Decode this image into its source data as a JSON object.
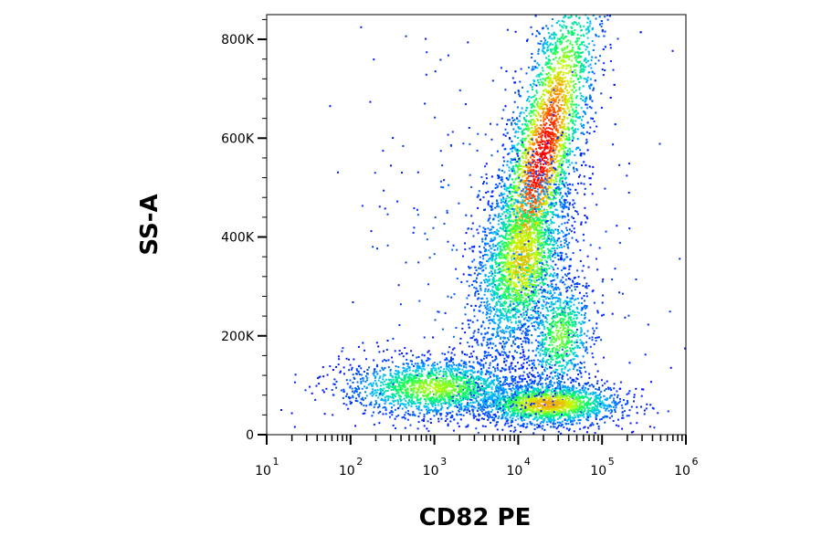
{
  "chart_data": {
    "type": "heatmap",
    "subtype": "flow-cytometry-density-scatter",
    "title": "",
    "xlabel": "CD82 PE",
    "ylabel": "SS-A",
    "x_scale": "log",
    "x_ticks": [
      {
        "base": "10",
        "exp": "1",
        "value": 10
      },
      {
        "base": "10",
        "exp": "2",
        "value": 100
      },
      {
        "base": "10",
        "exp": "3",
        "value": 1000
      },
      {
        "base": "10",
        "exp": "4",
        "value": 10000
      },
      {
        "base": "10",
        "exp": "5",
        "value": 100000
      },
      {
        "base": "10",
        "exp": "6",
        "value": 1000000
      }
    ],
    "y_ticks": [
      {
        "label": "0",
        "value": 0
      },
      {
        "label": "200K",
        "value": 200000
      },
      {
        "label": "400K",
        "value": 400000
      },
      {
        "label": "600K",
        "value": 600000
      },
      {
        "label": "800K",
        "value": 800000
      }
    ],
    "xlim": [
      10,
      1000000
    ],
    "ylim": [
      0,
      850000
    ],
    "grid": false,
    "legend": "none",
    "colormap": [
      "#0000ff",
      "#00c0ff",
      "#00ff60",
      "#c8ff00",
      "#ff9000",
      "#ff0000"
    ],
    "populations": [
      {
        "name_hint": "main",
        "center_log_x": 4.28,
        "center_y": 560000,
        "spread_log_x": 0.22,
        "spread_y": 200000,
        "tilt": 0.55,
        "weight": 0.42,
        "peak_intensity": 1.0
      },
      {
        "name_hint": "mid",
        "center_log_x": 4.05,
        "center_y": 350000,
        "spread_log_x": 0.28,
        "spread_y": 90000,
        "tilt": 0.3,
        "weight": 0.15,
        "peak_intensity": 0.7
      },
      {
        "name_hint": "lower-right",
        "center_log_x": 4.5,
        "center_y": 200000,
        "spread_log_x": 0.2,
        "spread_y": 60000,
        "tilt": 0.2,
        "weight": 0.07,
        "peak_intensity": 0.5
      },
      {
        "name_hint": "bottom-right",
        "center_log_x": 4.35,
        "center_y": 62000,
        "spread_log_x": 0.45,
        "spread_y": 22000,
        "tilt": 0.0,
        "weight": 0.16,
        "peak_intensity": 0.75
      },
      {
        "name_hint": "bottom-left",
        "center_log_x": 3.0,
        "center_y": 95000,
        "spread_log_x": 0.55,
        "spread_y": 30000,
        "tilt": 0.0,
        "weight": 0.16,
        "peak_intensity": 0.55
      },
      {
        "name_hint": "background",
        "center_log_x": 3.8,
        "center_y": 300000,
        "spread_log_x": 0.9,
        "spread_y": 250000,
        "tilt": 0.0,
        "weight": 0.04,
        "peak_intensity": 0.1
      }
    ]
  }
}
